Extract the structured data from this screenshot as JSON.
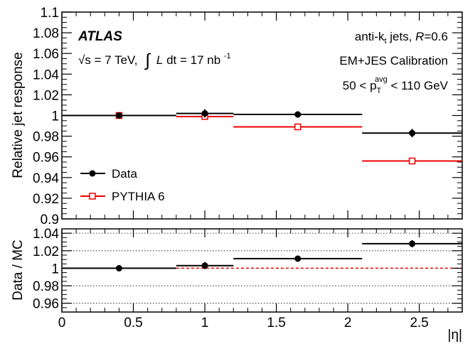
{
  "chart_data": [
    {
      "type": "scatter",
      "panel": "top",
      "xlim": [
        0,
        2.8
      ],
      "ylim": [
        0.9,
        1.1
      ],
      "ylabel": "Relative jet response",
      "yticks": [
        "0.9",
        "0.92",
        "0.94",
        "0.96",
        "0.98",
        "1",
        "1.02",
        "1.04",
        "1.06",
        "1.08",
        "1.1"
      ],
      "yticks_values": [
        0.9,
        0.92,
        0.94,
        0.96,
        0.98,
        1.0,
        1.02,
        1.04,
        1.06,
        1.08,
        1.1
      ],
      "experiment": "ATLAS",
      "energy_pre": "√s = 7 TeV,",
      "lumi_int": "∫",
      "lumi_L": "L",
      "lumi_dt": " dt = 17 nb",
      "lumi_exp": "-1",
      "info1_pre": "anti-k",
      "info1_sub": "t",
      "info1_mid": " jets, ",
      "info1_R": "R",
      "info1_post": "=0.6",
      "info2": "EM+JES Calibration",
      "info3_pre": "50 < p",
      "info3_sub": "T",
      "info3_sup": "avg",
      "info3_post": " < 110 GeV",
      "legend_position": "bottom-left",
      "series": [
        {
          "name": "Data",
          "color": "#000000",
          "marker": "filled-circle",
          "points": [
            {
              "x": 0.4,
              "xlo": 0.0,
              "xhi": 0.8,
              "y": 1.0,
              "err": 0.002
            },
            {
              "x": 1.0,
              "xlo": 0.8,
              "xhi": 1.2,
              "y": 1.002,
              "err": 0.004
            },
            {
              "x": 1.65,
              "xlo": 1.2,
              "xhi": 2.1,
              "y": 1.001,
              "err": 0.003
            },
            {
              "x": 2.45,
              "xlo": 2.1,
              "xhi": 2.8,
              "y": 0.983,
              "err": 0.004
            }
          ]
        },
        {
          "name": "PYTHIA 6",
          "color": "#ee0000",
          "marker": "open-square",
          "points": [
            {
              "x": 0.4,
              "xlo": 0.0,
              "xhi": 0.8,
              "y": 1.0,
              "err": 0.0
            },
            {
              "x": 1.0,
              "xlo": 0.8,
              "xhi": 1.2,
              "y": 0.999,
              "err": 0.0
            },
            {
              "x": 1.65,
              "xlo": 1.2,
              "xhi": 2.1,
              "y": 0.989,
              "err": 0.0
            },
            {
              "x": 2.45,
              "xlo": 2.1,
              "xhi": 2.8,
              "y": 0.956,
              "err": 0.0
            }
          ]
        }
      ]
    },
    {
      "type": "scatter",
      "panel": "ratio",
      "xlim": [
        0,
        2.8
      ],
      "ylim": [
        0.95,
        1.045
      ],
      "xlabel": "|η|",
      "ylabel": "Data / MC",
      "xticks": [
        "0",
        "0.5",
        "1",
        "1.5",
        "2",
        "2.5"
      ],
      "xticks_values": [
        0,
        0.5,
        1,
        1.5,
        2,
        2.5
      ],
      "yticks": [
        "0.96",
        "0.98",
        "1",
        "1.02",
        "1.04"
      ],
      "yticks_values": [
        0.96,
        0.98,
        1.0,
        1.02,
        1.04
      ],
      "grid": "horizontal-dotted",
      "reference_line": 1.0,
      "reference_color": "#ee0000",
      "series": [
        {
          "name": "Data / MC",
          "color": "#000000",
          "marker": "filled-circle",
          "points": [
            {
              "x": 0.4,
              "xlo": 0.0,
              "xhi": 0.8,
              "y": 1.0,
              "err": 0.002
            },
            {
              "x": 1.0,
              "xlo": 0.8,
              "xhi": 1.2,
              "y": 1.003,
              "err": 0.004
            },
            {
              "x": 1.65,
              "xlo": 1.2,
              "xhi": 2.1,
              "y": 1.011,
              "err": 0.003
            },
            {
              "x": 2.45,
              "xlo": 2.1,
              "xhi": 2.8,
              "y": 1.028,
              "err": 0.004
            }
          ]
        }
      ]
    }
  ]
}
